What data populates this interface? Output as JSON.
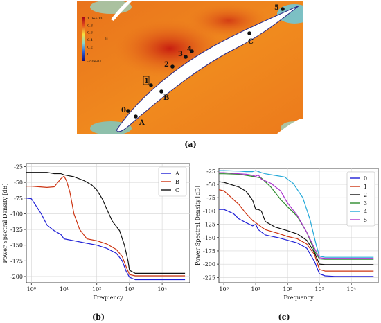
{
  "panel_labels": {
    "a": "(a)",
    "b": "(b)",
    "c": "(c)"
  },
  "colors": {
    "A": "#1f1fd6",
    "B": "#cc3311",
    "C": "#111111",
    "0": "#1f1fd6",
    "1": "#cc3311",
    "2": "#111111",
    "3": "#2e8b2e",
    "4": "#22a8d8",
    "5": "#aa33cc"
  },
  "contour": {
    "colorbar_title": "u",
    "colorbar_ticks": [
      "1.0e+00",
      "0.8",
      "0.6",
      "0.4",
      "0.2",
      "0",
      "-2.0e-01"
    ],
    "colorbar_tick_values": [
      1.0,
      0.8,
      0.6,
      0.4,
      0.2,
      0.0,
      -0.2
    ],
    "probes_upper": [
      "0",
      "1",
      "2",
      "3",
      "4",
      "5"
    ],
    "probes_lower": [
      "A",
      "B",
      "C"
    ]
  },
  "chart_data": [
    {
      "id": "b",
      "type": "line",
      "xscale": "log",
      "xlim": [
        0.7,
        70000
      ],
      "ylim": [
        -210,
        -20
      ],
      "yticks": [
        -25,
        -50,
        -75,
        -100,
        -125,
        -150,
        -175,
        -200
      ],
      "xtick_values": [
        1,
        10,
        100,
        1000,
        10000
      ],
      "xtick_labels": [
        "10⁰",
        "10¹",
        "10²",
        "10³",
        "10⁴"
      ],
      "xlabel": "Frequency",
      "ylabel": "Power Spectral Density [dB]",
      "grid": true,
      "legend_position": "top-right",
      "series": [
        {
          "name": "A",
          "x": [
            0.7,
            1,
            2,
            3,
            5,
            8,
            10,
            20,
            50,
            100,
            200,
            400,
            600,
            800,
            1000,
            1500,
            3000,
            10000,
            50000
          ],
          "y": [
            -75,
            -76,
            -100,
            -118,
            -127,
            -133,
            -140,
            -143,
            -147,
            -150,
            -155,
            -163,
            -175,
            -192,
            -201,
            -205,
            -205,
            -205,
            -205
          ]
        },
        {
          "name": "B",
          "x": [
            0.7,
            1,
            3,
            5,
            8,
            10,
            12,
            15,
            20,
            30,
            50,
            100,
            200,
            400,
            600,
            800,
            1000,
            1500,
            3000,
            10000,
            50000
          ],
          "y": [
            -56,
            -56,
            -58,
            -57,
            -44,
            -40,
            -48,
            -65,
            -100,
            -125,
            -140,
            -143,
            -148,
            -157,
            -168,
            -185,
            -197,
            -199,
            -199,
            -199,
            -199
          ]
        },
        {
          "name": "C",
          "x": [
            0.7,
            1,
            3,
            5,
            8,
            10,
            20,
            40,
            70,
            100,
            150,
            200,
            300,
            500,
            700,
            900,
            1000,
            1500,
            3000,
            10000,
            50000
          ],
          "y": [
            -34,
            -34,
            -34,
            -36,
            -36,
            -38,
            -41,
            -47,
            -54,
            -62,
            -77,
            -92,
            -112,
            -127,
            -150,
            -175,
            -190,
            -195,
            -195,
            -195,
            -195
          ]
        }
      ]
    },
    {
      "id": "c",
      "type": "line",
      "xscale": "log",
      "xlim": [
        0.7,
        70000
      ],
      "ylim": [
        -235,
        -20
      ],
      "yticks": [
        -25,
        -50,
        -75,
        -100,
        -125,
        -150,
        -175,
        -200,
        -225
      ],
      "xtick_values": [
        1,
        10,
        100,
        1000,
        10000
      ],
      "xtick_labels": [
        "10⁰",
        "10¹",
        "10²",
        "10³",
        "10⁴"
      ],
      "xlabel": "Frequency",
      "ylabel": "Power Spectral Density [dB]",
      "grid": true,
      "legend_position": "top-right",
      "series": [
        {
          "name": "0",
          "x": [
            0.7,
            1,
            2,
            3,
            5,
            8,
            10,
            12,
            20,
            50,
            100,
            200,
            400,
            700,
            1000,
            1500,
            3000,
            10000,
            50000
          ],
          "y": [
            -97,
            -97,
            -105,
            -115,
            -122,
            -128,
            -125,
            -135,
            -145,
            -150,
            -155,
            -160,
            -170,
            -195,
            -218,
            -222,
            -223,
            -223,
            -223
          ]
        },
        {
          "name": "1",
          "x": [
            0.7,
            1,
            3,
            5,
            8,
            10,
            15,
            20,
            50,
            100,
            200,
            400,
            700,
            1000,
            1500,
            3000,
            10000,
            50000
          ],
          "y": [
            -60,
            -62,
            -88,
            -105,
            -118,
            -122,
            -130,
            -135,
            -142,
            -148,
            -152,
            -162,
            -182,
            -210,
            -213,
            -213,
            -213,
            -213
          ]
        },
        {
          "name": "2",
          "x": [
            0.7,
            1,
            3,
            5,
            8,
            10,
            12,
            15,
            20,
            40,
            100,
            200,
            400,
            700,
            1000,
            1500,
            3000,
            10000,
            50000
          ],
          "y": [
            -45,
            -46,
            -55,
            -63,
            -80,
            -97,
            -97,
            -100,
            -120,
            -130,
            -137,
            -143,
            -155,
            -178,
            -200,
            -201,
            -201,
            -201,
            -201
          ]
        },
        {
          "name": "3",
          "x": [
            0.7,
            1,
            3,
            5,
            8,
            10,
            15,
            30,
            60,
            100,
            200,
            400,
            700,
            1000,
            1500,
            3000,
            10000,
            50000
          ],
          "y": [
            -30,
            -30,
            -31,
            -33,
            -35,
            -36,
            -38,
            -55,
            -78,
            -92,
            -110,
            -140,
            -175,
            -190,
            -191,
            -191,
            -191,
            -191
          ]
        },
        {
          "name": "4",
          "x": [
            0.7,
            1,
            3,
            5,
            8,
            10,
            15,
            20,
            40,
            80,
            150,
            300,
            500,
            800,
            1000,
            1500,
            3000,
            10000,
            50000
          ],
          "y": [
            -24,
            -24,
            -25,
            -26,
            -26,
            -24,
            -28,
            -30,
            -33,
            -36,
            -48,
            -75,
            -115,
            -165,
            -185,
            -187,
            -187,
            -187,
            -187
          ]
        },
        {
          "name": "5",
          "x": [
            0.7,
            1,
            3,
            5,
            8,
            10,
            12,
            15,
            30,
            60,
            100,
            200,
            400,
            700,
            1000,
            1500,
            3000,
            10000,
            50000
          ],
          "y": [
            -28,
            -28,
            -30,
            -31,
            -33,
            -35,
            -32,
            -40,
            -48,
            -62,
            -85,
            -108,
            -140,
            -170,
            -188,
            -189,
            -189,
            -189,
            -189
          ]
        }
      ]
    }
  ]
}
